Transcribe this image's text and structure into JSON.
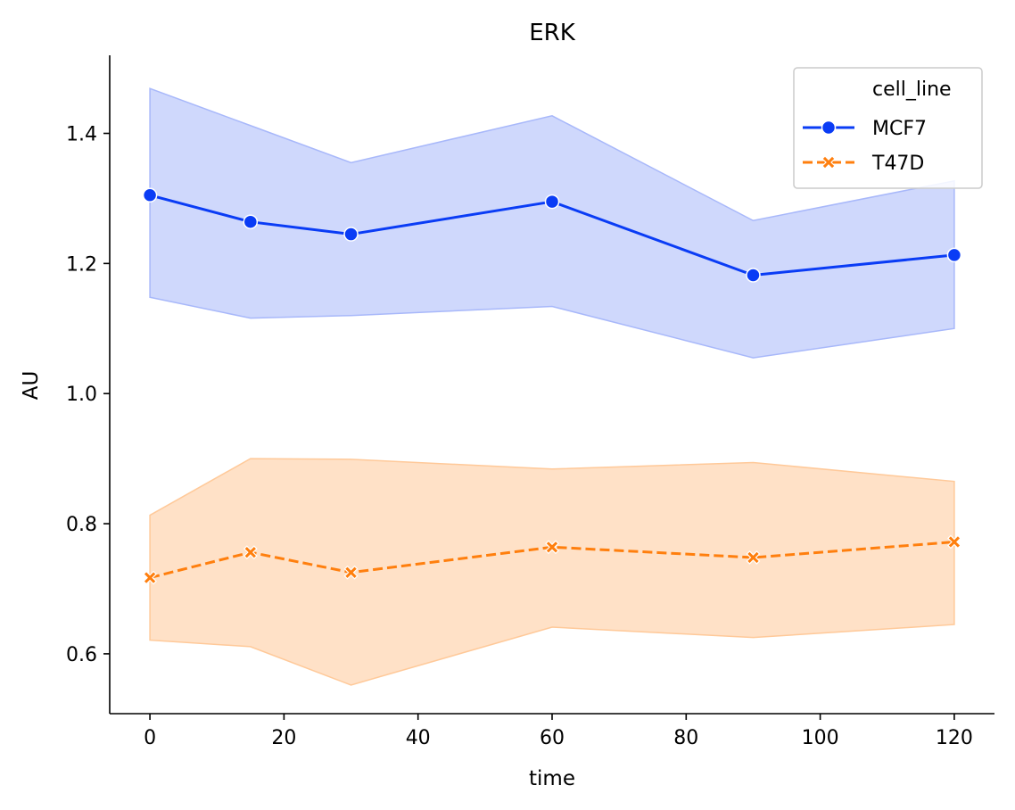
{
  "chart_data": {
    "type": "line",
    "title": "ERK",
    "xlabel": "time",
    "ylabel": "AU",
    "xlim": [
      -6,
      126
    ],
    "ylim": [
      0.508,
      1.52
    ],
    "xticks": [
      0,
      20,
      40,
      60,
      80,
      100,
      120
    ],
    "xtick_labels": [
      "0",
      "20",
      "40",
      "60",
      "80",
      "100",
      "120"
    ],
    "yticks": [
      0.6,
      0.8,
      1.0,
      1.2,
      1.4
    ],
    "ytick_labels": [
      "0.6",
      "0.8",
      "1.0",
      "1.2",
      "1.4"
    ],
    "grid": false,
    "legend": {
      "title": "cell_line",
      "placement": "top-right"
    },
    "x": [
      0,
      15,
      30,
      60,
      90,
      120
    ],
    "series": [
      {
        "name": "MCF7",
        "color": "#0a3cf5",
        "band_color": "#a8b8fa",
        "marker": "circle",
        "linestyle": "solid",
        "values": [
          1.305,
          1.264,
          1.245,
          1.295,
          1.182,
          1.213
        ],
        "ci_lower": [
          1.148,
          1.116,
          1.12,
          1.134,
          1.055,
          1.1
        ],
        "ci_upper": [
          1.469,
          1.412,
          1.355,
          1.427,
          1.266,
          1.327
        ]
      },
      {
        "name": "T47D",
        "color": "#ff7f0e",
        "band_color": "#ffc999",
        "marker": "x",
        "linestyle": "dashed",
        "values": [
          0.717,
          0.756,
          0.725,
          0.764,
          0.748,
          0.772
        ],
        "ci_lower": [
          0.621,
          0.611,
          0.552,
          0.641,
          0.625,
          0.645
        ],
        "ci_upper": [
          0.813,
          0.9,
          0.899,
          0.884,
          0.894,
          0.865
        ]
      }
    ]
  }
}
